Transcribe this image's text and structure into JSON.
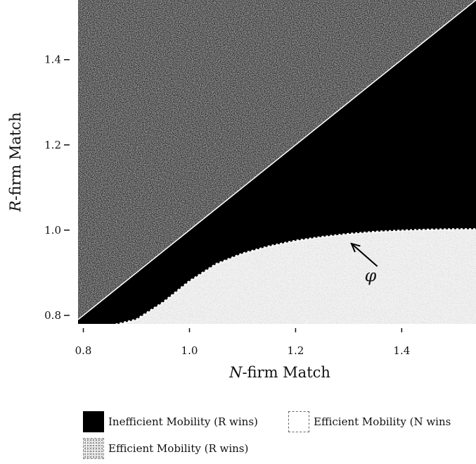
{
  "chart_data": {
    "type": "area",
    "xlabel_prefix": "N",
    "xlabel_rest": "-firm Match",
    "ylabel_prefix": "R",
    "ylabel_rest": "-firm Match",
    "xlim": [
      0.79,
      1.54
    ],
    "ylim": [
      0.78,
      1.54
    ],
    "x_ticks": [
      0.8,
      1.0,
      1.2,
      1.4
    ],
    "x_tick_labels": [
      "0.8",
      "1.0",
      "1.2",
      "1.4"
    ],
    "y_ticks": [
      0.8,
      1.0,
      1.2,
      1.4
    ],
    "y_tick_labels": [
      "0.8",
      "1.0",
      "1.2",
      "1.4"
    ],
    "regions": [
      {
        "name": "Efficient Mobility (N wins)",
        "fill": "#b0b0b0",
        "pattern": "speckle-dense"
      },
      {
        "name": "Inefficient Mobility (R wins)",
        "fill": "#000000",
        "pattern": "solid"
      },
      {
        "name": "Efficient Mobility (R wins)",
        "fill": "#ededed",
        "pattern": "speckle-light"
      }
    ],
    "boundaries": {
      "diagonal": {
        "x": [
          0.79,
          1.54
        ],
        "y": [
          0.79,
          1.54
        ]
      },
      "phi_curve": {
        "x": [
          0.79,
          0.85,
          0.9,
          0.95,
          1.0,
          1.05,
          1.1,
          1.15,
          1.2,
          1.25,
          1.3,
          1.35,
          1.4,
          1.45,
          1.5,
          1.54
        ],
        "y": [
          0.77,
          0.775,
          0.79,
          0.83,
          0.88,
          0.92,
          0.945,
          0.962,
          0.975,
          0.984,
          0.991,
          0.996,
          0.999,
          1.001,
          1.002,
          1.002
        ]
      }
    },
    "annotations": [
      {
        "text": "φ",
        "x": 1.33,
        "y": 0.88,
        "arrow_to": [
          1.3,
          0.975
        ]
      }
    ]
  },
  "legend": {
    "inefficient_r": "Inefficient Mobility (R wins)",
    "efficient_n": "Efficient Mobility (N wins",
    "efficient_r": "Efficient Mobility (R wins)"
  }
}
